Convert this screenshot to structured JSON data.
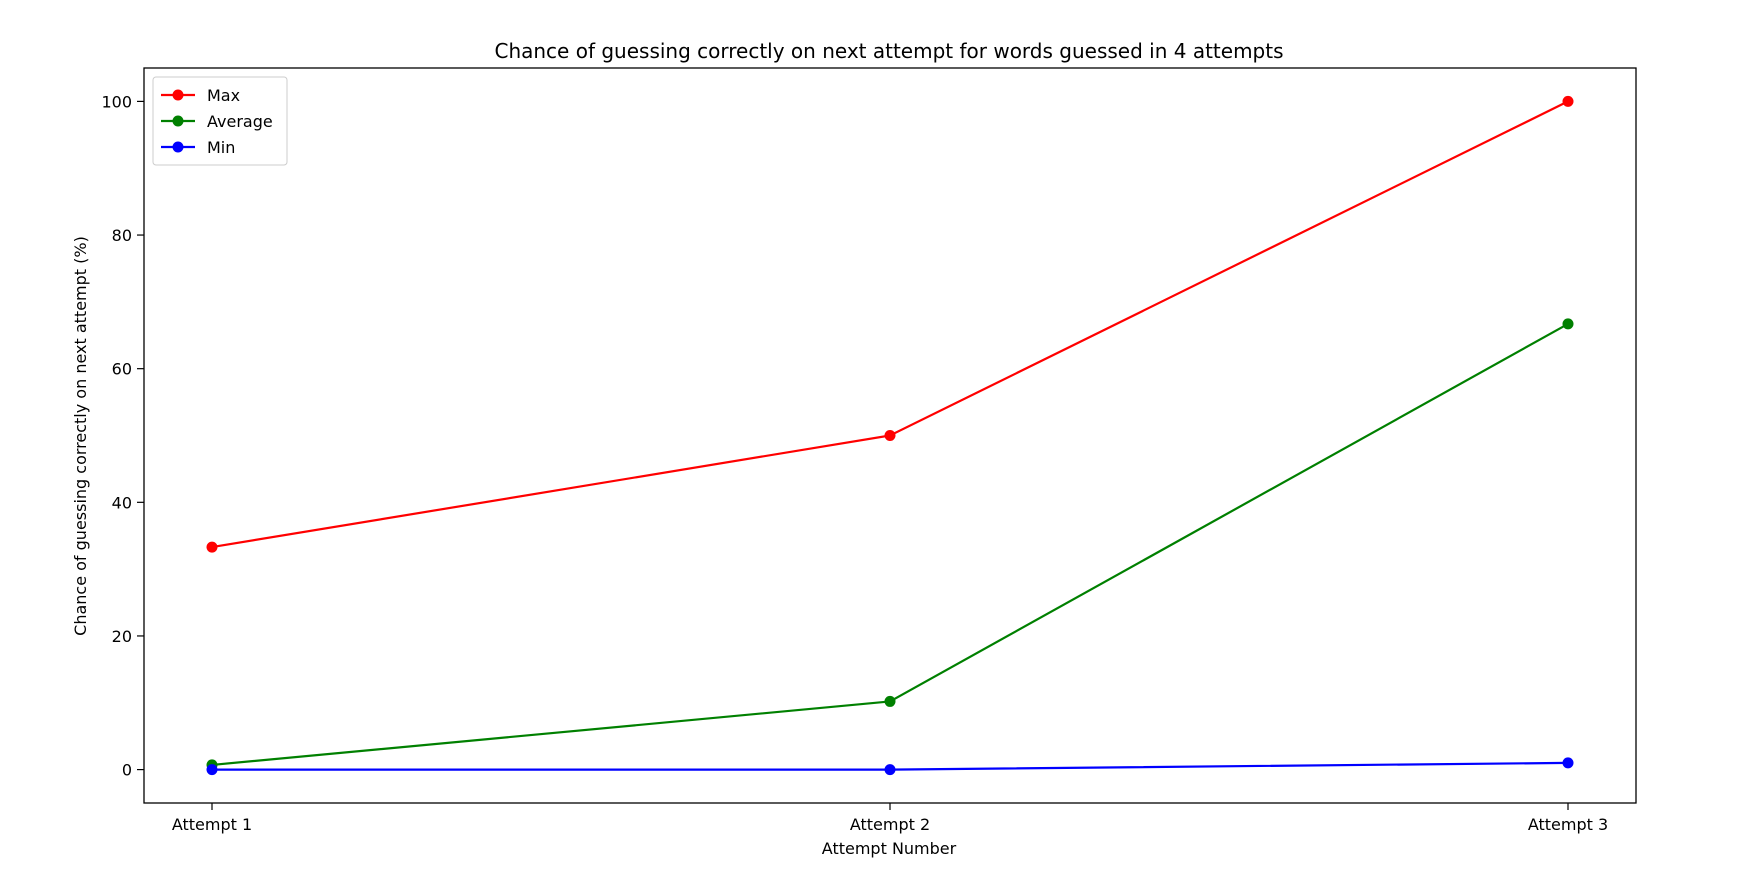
{
  "chart_data": {
    "type": "line",
    "title": "Chance of guessing correctly on next attempt for words guessed in 4 attempts",
    "xlabel": "Attempt Number",
    "ylabel": "Chance of guessing correctly on next attempt (%)",
    "categories": [
      "Attempt 1",
      "Attempt 2",
      "Attempt 3"
    ],
    "ylim": [
      -5,
      105
    ],
    "yticks": [
      0,
      20,
      40,
      60,
      80,
      100
    ],
    "grid": false,
    "legend_position": "top-left",
    "series": [
      {
        "name": "Max",
        "color": "#ff0000",
        "values": [
          33.3,
          50.0,
          100.0
        ]
      },
      {
        "name": "Average",
        "color": "#008000",
        "values": [
          0.7,
          10.2,
          66.7
        ]
      },
      {
        "name": "Min",
        "color": "#0000ff",
        "values": [
          0.0,
          0.0,
          1.0
        ]
      }
    ]
  }
}
